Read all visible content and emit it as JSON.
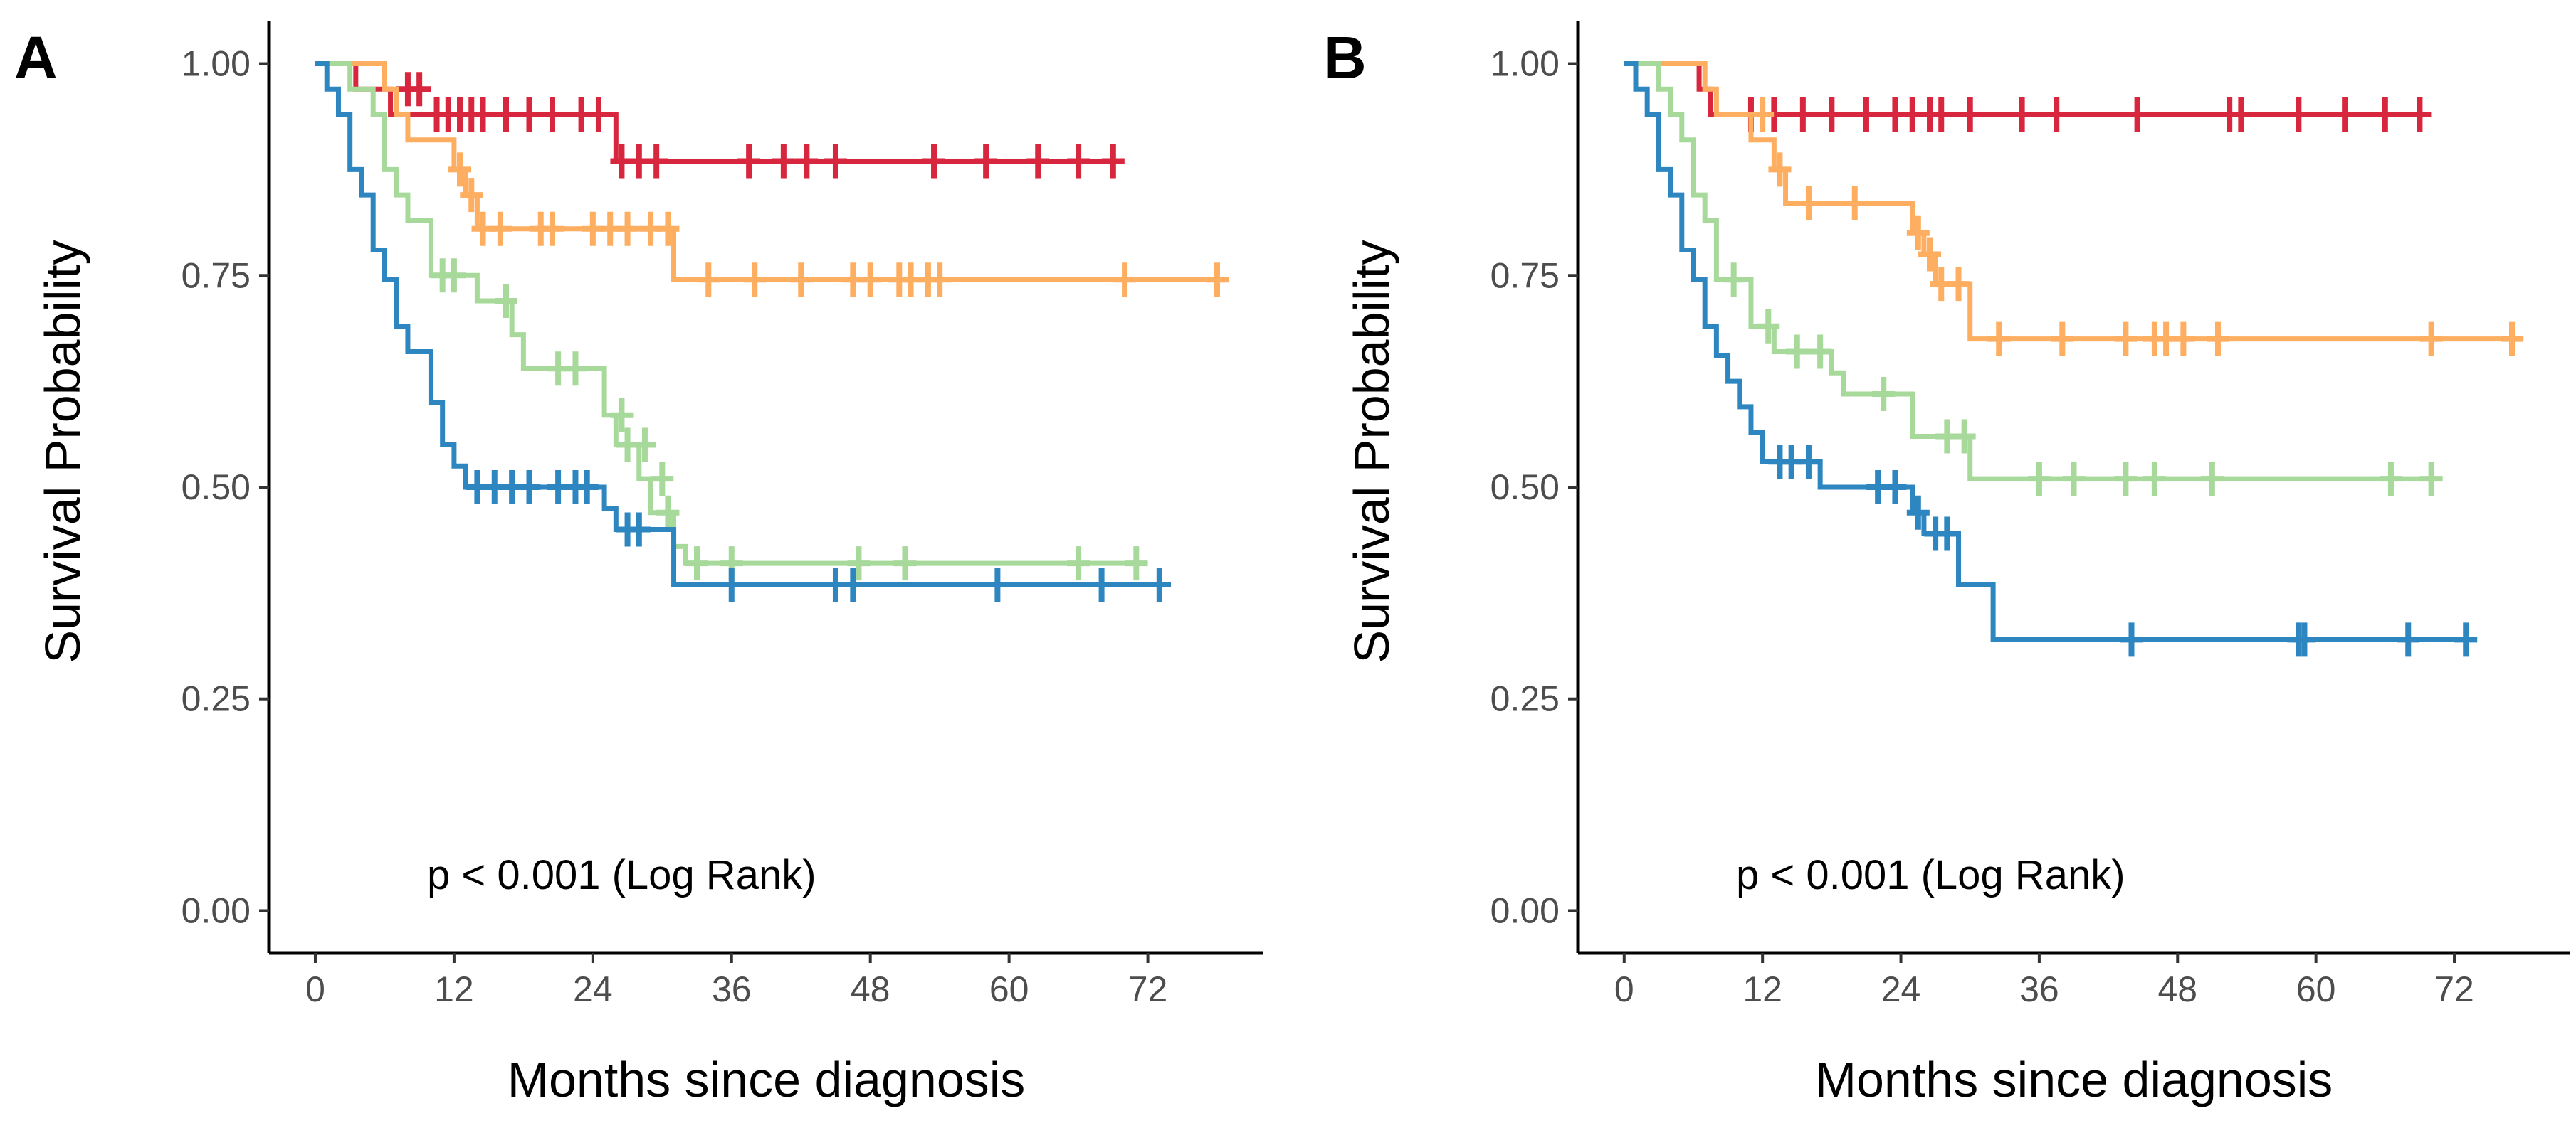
{
  "chart_data": [
    {
      "type": "line",
      "panel": "A",
      "title": "",
      "xlabel": "Months since diagnosis",
      "ylabel": "Survival Probability",
      "xticks": [
        0,
        12,
        24,
        36,
        48,
        60,
        72
      ],
      "xtick_labels": [
        "0",
        "12",
        "24",
        "36",
        "48",
        "60",
        "72"
      ],
      "yticks": [
        0,
        0.25,
        0.5,
        0.75,
        1.0
      ],
      "ytick_labels": [
        "0.00",
        "0.25",
        "0.50",
        "0.75",
        "1.00"
      ],
      "xlim": [
        -4,
        82
      ],
      "ylim": [
        -0.05,
        1.05
      ],
      "grid": false,
      "annotation": "p < 0.001 (Log Rank)",
      "series": [
        {
          "name": "red",
          "color": "#d7263d",
          "steps": [
            [
              0,
              1.0
            ],
            [
              3.5,
              0.97
            ],
            [
              6.5,
              0.94
            ],
            [
              26,
              0.885
            ],
            [
              69,
              0.885
            ]
          ],
          "censors": [
            [
              8,
              0.97
            ],
            [
              9,
              0.97
            ],
            [
              10.5,
              0.94
            ],
            [
              11.5,
              0.94
            ],
            [
              12.5,
              0.94
            ],
            [
              13.5,
              0.94
            ],
            [
              14.5,
              0.94
            ],
            [
              16.5,
              0.94
            ],
            [
              18.5,
              0.94
            ],
            [
              20.5,
              0.94
            ],
            [
              23,
              0.94
            ],
            [
              24.5,
              0.94
            ],
            [
              26.5,
              0.885
            ],
            [
              28,
              0.885
            ],
            [
              29.5,
              0.885
            ],
            [
              37.5,
              0.885
            ],
            [
              40.5,
              0.885
            ],
            [
              42.5,
              0.885
            ],
            [
              45,
              0.885
            ],
            [
              53.5,
              0.885
            ],
            [
              58,
              0.885
            ],
            [
              62.5,
              0.885
            ],
            [
              66,
              0.885
            ],
            [
              69,
              0.885
            ]
          ]
        },
        {
          "name": "orange",
          "color": "#fdae61",
          "steps": [
            [
              0,
              1.0
            ],
            [
              6,
              0.97
            ],
            [
              7,
              0.94
            ],
            [
              8,
              0.91
            ],
            [
              12,
              0.875
            ],
            [
              13,
              0.845
            ],
            [
              14,
              0.805
            ],
            [
              31,
              0.745
            ],
            [
              78,
              0.745
            ]
          ],
          "censors": [
            [
              12.5,
              0.875
            ],
            [
              13.5,
              0.845
            ],
            [
              14.5,
              0.805
            ],
            [
              16,
              0.805
            ],
            [
              19.5,
              0.805
            ],
            [
              20.5,
              0.805
            ],
            [
              24,
              0.805
            ],
            [
              25.5,
              0.805
            ],
            [
              27,
              0.805
            ],
            [
              29,
              0.805
            ],
            [
              30.5,
              0.805
            ],
            [
              34,
              0.745
            ],
            [
              38,
              0.745
            ],
            [
              42,
              0.745
            ],
            [
              46.5,
              0.745
            ],
            [
              48,
              0.745
            ],
            [
              50.5,
              0.745
            ],
            [
              51.5,
              0.745
            ],
            [
              53,
              0.745
            ],
            [
              54,
              0.745
            ],
            [
              70,
              0.745
            ],
            [
              78,
              0.745
            ]
          ]
        },
        {
          "name": "green",
          "color": "#a6d99a",
          "steps": [
            [
              0,
              1.0
            ],
            [
              3,
              0.97
            ],
            [
              5,
              0.94
            ],
            [
              6,
              0.875
            ],
            [
              7,
              0.845
            ],
            [
              8,
              0.815
            ],
            [
              10,
              0.75
            ],
            [
              14,
              0.72
            ],
            [
              17,
              0.68
            ],
            [
              18,
              0.64
            ],
            [
              25,
              0.585
            ],
            [
              26,
              0.55
            ],
            [
              28,
              0.51
            ],
            [
              29,
              0.47
            ],
            [
              31,
              0.43
            ],
            [
              32,
              0.41
            ],
            [
              72,
              0.41
            ]
          ],
          "censors": [
            [
              11,
              0.75
            ],
            [
              12,
              0.75
            ],
            [
              16.5,
              0.72
            ],
            [
              21,
              0.64
            ],
            [
              22.5,
              0.64
            ],
            [
              26.5,
              0.585
            ],
            [
              27,
              0.55
            ],
            [
              28.5,
              0.55
            ],
            [
              30,
              0.51
            ],
            [
              30.5,
              0.47
            ],
            [
              33,
              0.41
            ],
            [
              36,
              0.41
            ],
            [
              47,
              0.41
            ],
            [
              51,
              0.41
            ],
            [
              66,
              0.41
            ],
            [
              71,
              0.41
            ]
          ]
        },
        {
          "name": "blue",
          "color": "#2e86c1",
          "steps": [
            [
              0,
              1.0
            ],
            [
              1,
              0.97
            ],
            [
              2,
              0.94
            ],
            [
              3,
              0.875
            ],
            [
              4,
              0.845
            ],
            [
              5,
              0.78
            ],
            [
              6,
              0.745
            ],
            [
              7,
              0.69
            ],
            [
              8,
              0.66
            ],
            [
              10,
              0.6
            ],
            [
              11,
              0.55
            ],
            [
              12,
              0.525
            ],
            [
              13,
              0.5
            ],
            [
              25,
              0.475
            ],
            [
              26,
              0.45
            ],
            [
              31,
              0.385
            ],
            [
              74,
              0.385
            ]
          ],
          "censors": [
            [
              14,
              0.5
            ],
            [
              15.5,
              0.5
            ],
            [
              17,
              0.5
            ],
            [
              18.5,
              0.5
            ],
            [
              21,
              0.5
            ],
            [
              22.5,
              0.5
            ],
            [
              23.5,
              0.5
            ],
            [
              27,
              0.45
            ],
            [
              28,
              0.45
            ],
            [
              36,
              0.385
            ],
            [
              45,
              0.385
            ],
            [
              46.5,
              0.385
            ],
            [
              59,
              0.385
            ],
            [
              68,
              0.385
            ],
            [
              73,
              0.385
            ]
          ]
        }
      ]
    },
    {
      "type": "line",
      "panel": "B",
      "title": "",
      "xlabel": "Months since diagnosis",
      "ylabel": "Survival Probability",
      "xticks": [
        0,
        12,
        24,
        36,
        48,
        60,
        72
      ],
      "xtick_labels": [
        "0",
        "12",
        "24",
        "36",
        "48",
        "60",
        "72"
      ],
      "yticks": [
        0,
        0.25,
        0.5,
        0.75,
        1.0
      ],
      "ytick_labels": [
        "0.00",
        "0.25",
        "0.50",
        "0.75",
        "1.00"
      ],
      "xlim": [
        -4,
        82
      ],
      "ylim": [
        -0.05,
        1.05
      ],
      "grid": false,
      "annotation": "p < 0.001 (Log Rank)",
      "series": [
        {
          "name": "red",
          "color": "#d7263d",
          "steps": [
            [
              0,
              1.0
            ],
            [
              6.5,
              0.97
            ],
            [
              7.5,
              0.94
            ],
            [
              69,
              0.94
            ]
          ],
          "censors": [
            [
              11,
              0.94
            ],
            [
              13,
              0.94
            ],
            [
              15.5,
              0.94
            ],
            [
              18,
              0.94
            ],
            [
              21,
              0.94
            ],
            [
              23.5,
              0.94
            ],
            [
              25,
              0.94
            ],
            [
              26.5,
              0.94
            ],
            [
              27.5,
              0.94
            ],
            [
              30,
              0.94
            ],
            [
              34.5,
              0.94
            ],
            [
              37.5,
              0.94
            ],
            [
              44.5,
              0.94
            ],
            [
              52.5,
              0.94
            ],
            [
              53.5,
              0.94
            ],
            [
              58.5,
              0.94
            ],
            [
              62.5,
              0.94
            ],
            [
              66,
              0.94
            ],
            [
              69,
              0.94
            ]
          ]
        },
        {
          "name": "orange",
          "color": "#fdae61",
          "steps": [
            [
              0,
              1.0
            ],
            [
              7,
              0.97
            ],
            [
              8,
              0.94
            ],
            [
              11,
              0.91
            ],
            [
              13,
              0.875
            ],
            [
              14,
              0.835
            ],
            [
              25,
              0.8
            ],
            [
              26,
              0.775
            ],
            [
              27,
              0.74
            ],
            [
              30,
              0.675
            ],
            [
              78,
              0.675
            ]
          ],
          "censors": [
            [
              12,
              0.94
            ],
            [
              13.5,
              0.875
            ],
            [
              16,
              0.835
            ],
            [
              20,
              0.835
            ],
            [
              25.5,
              0.8
            ],
            [
              26.5,
              0.775
            ],
            [
              27.5,
              0.74
            ],
            [
              29,
              0.74
            ],
            [
              32.5,
              0.675
            ],
            [
              38,
              0.675
            ],
            [
              43.5,
              0.675
            ],
            [
              46,
              0.675
            ],
            [
              47,
              0.675
            ],
            [
              48.5,
              0.675
            ],
            [
              51.5,
              0.675
            ],
            [
              70,
              0.675
            ],
            [
              77,
              0.675
            ]
          ]
        },
        {
          "name": "green",
          "color": "#a6d99a",
          "steps": [
            [
              0,
              1.0
            ],
            [
              3,
              0.97
            ],
            [
              4,
              0.94
            ],
            [
              5,
              0.91
            ],
            [
              6,
              0.845
            ],
            [
              7,
              0.815
            ],
            [
              8,
              0.745
            ],
            [
              11,
              0.69
            ],
            [
              13,
              0.66
            ],
            [
              18,
              0.635
            ],
            [
              19,
              0.61
            ],
            [
              25,
              0.56
            ],
            [
              30,
              0.51
            ],
            [
              70,
              0.51
            ]
          ],
          "censors": [
            [
              9.5,
              0.745
            ],
            [
              12.5,
              0.69
            ],
            [
              15,
              0.66
            ],
            [
              17,
              0.66
            ],
            [
              22.5,
              0.61
            ],
            [
              28,
              0.56
            ],
            [
              29.5,
              0.56
            ],
            [
              36,
              0.51
            ],
            [
              39,
              0.51
            ],
            [
              43.5,
              0.51
            ],
            [
              46,
              0.51
            ],
            [
              51,
              0.51
            ],
            [
              66.5,
              0.51
            ],
            [
              70,
              0.51
            ]
          ]
        },
        {
          "name": "blue",
          "color": "#2e86c1",
          "steps": [
            [
              0,
              1.0
            ],
            [
              1,
              0.97
            ],
            [
              2,
              0.94
            ],
            [
              3,
              0.875
            ],
            [
              4,
              0.845
            ],
            [
              5,
              0.78
            ],
            [
              6,
              0.745
            ],
            [
              7,
              0.69
            ],
            [
              8,
              0.655
            ],
            [
              9,
              0.625
            ],
            [
              10,
              0.595
            ],
            [
              11,
              0.565
            ],
            [
              12,
              0.53
            ],
            [
              17,
              0.5
            ],
            [
              25,
              0.47
            ],
            [
              26,
              0.445
            ],
            [
              29,
              0.385
            ],
            [
              32,
              0.32
            ],
            [
              73,
              0.32
            ]
          ],
          "censors": [
            [
              13.5,
              0.53
            ],
            [
              14.5,
              0.53
            ],
            [
              16,
              0.53
            ],
            [
              22,
              0.5
            ],
            [
              23.5,
              0.5
            ],
            [
              25.5,
              0.47
            ],
            [
              27,
              0.445
            ],
            [
              28,
              0.445
            ],
            [
              44,
              0.32
            ],
            [
              58.5,
              0.32
            ],
            [
              59,
              0.32
            ],
            [
              68,
              0.32
            ],
            [
              73,
              0.32
            ]
          ]
        }
      ]
    }
  ]
}
